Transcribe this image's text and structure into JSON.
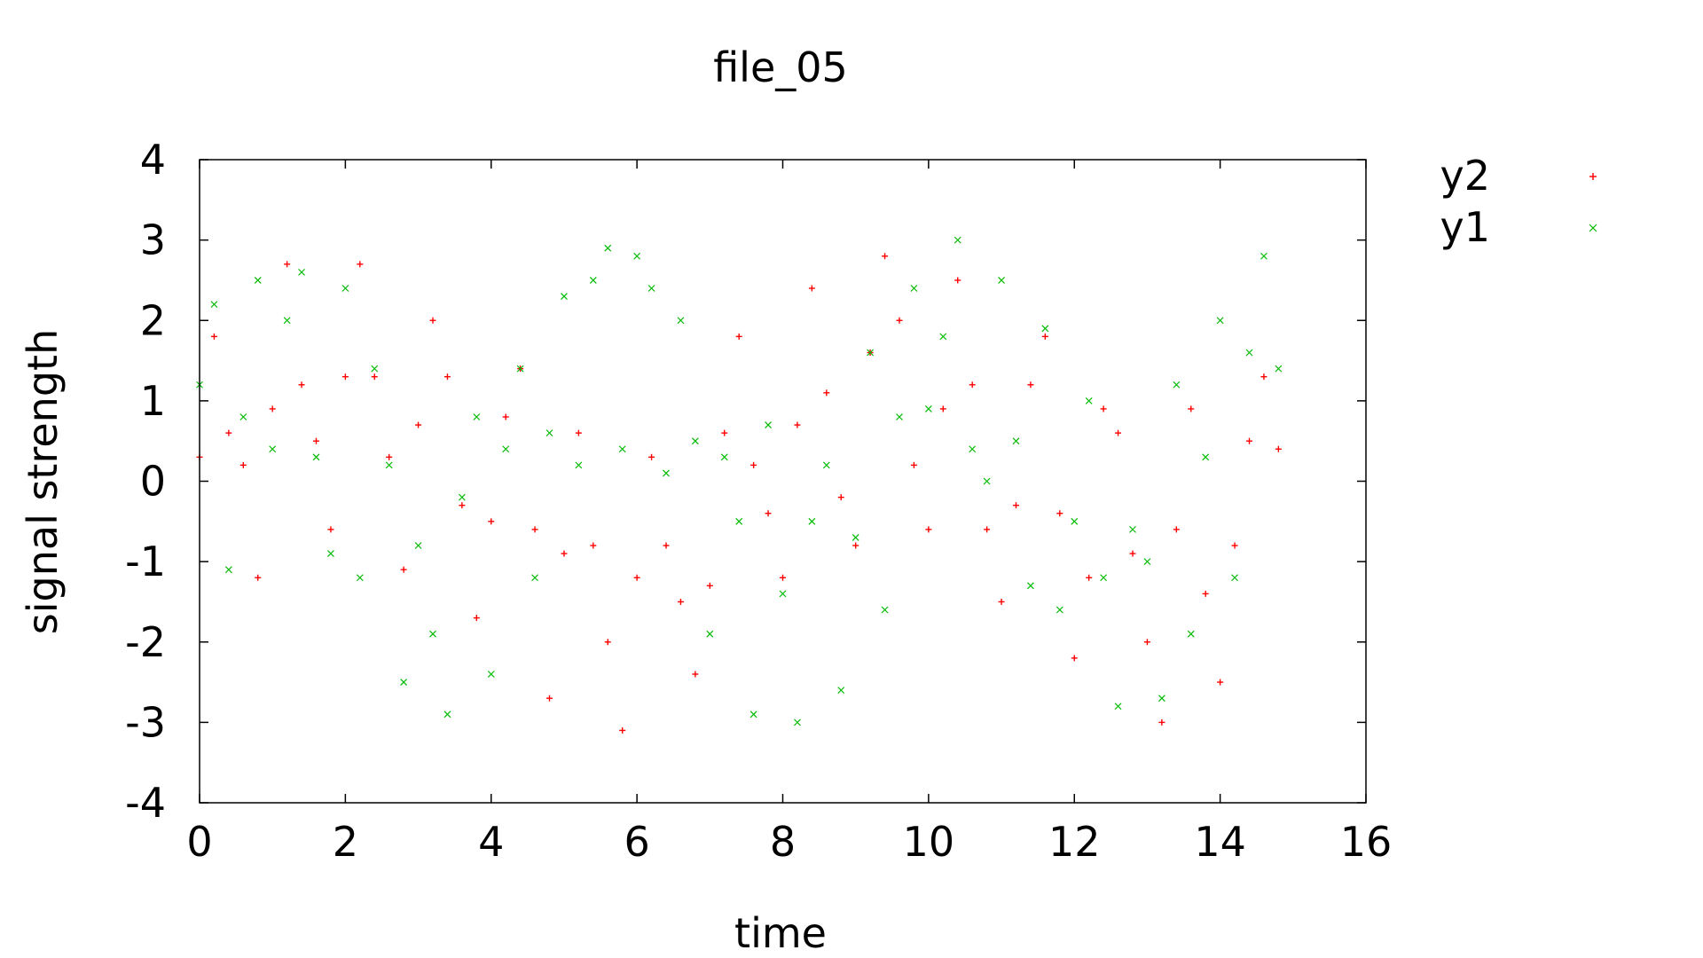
{
  "chart_data": {
    "type": "scatter",
    "title": "file_05",
    "xlabel": "time",
    "ylabel": "signal strength",
    "xlim": [
      0,
      16
    ],
    "ylim": [
      -4,
      4
    ],
    "xticks": [
      "0",
      "2",
      "4",
      "6",
      "8",
      "10",
      "12",
      "14",
      "16"
    ],
    "yticks": [
      "4",
      "3",
      "2",
      "1",
      "0",
      "-1",
      "-2",
      "-3",
      "-4"
    ],
    "grid": false,
    "legend": "right-outside",
    "series": [
      {
        "name": "y2",
        "marker": "plus",
        "color": "#ff0000",
        "x": [
          0.0,
          0.2,
          0.4,
          0.6,
          0.8,
          1.0,
          1.2,
          1.4,
          1.6,
          1.8,
          2.0,
          2.2,
          2.4,
          2.6,
          2.8,
          3.0,
          3.2,
          3.4,
          3.6,
          3.8,
          4.0,
          4.2,
          4.4,
          4.6,
          4.8,
          5.0,
          5.2,
          5.4,
          5.6,
          5.8,
          6.0,
          6.2,
          6.4,
          6.6,
          6.8,
          7.0,
          7.2,
          7.4,
          7.6,
          7.8,
          8.0,
          8.2,
          8.4,
          8.6,
          8.8,
          9.0,
          9.2,
          9.4,
          9.6,
          9.8,
          10.0,
          10.2,
          10.4,
          10.6,
          10.8,
          11.0,
          11.2,
          11.4,
          11.6,
          11.8,
          12.0,
          12.2,
          12.4,
          12.6,
          12.8,
          13.0,
          13.2,
          13.4,
          13.6,
          13.8,
          14.0,
          14.2,
          14.4,
          14.6,
          14.8
        ],
        "y": [
          0.3,
          1.8,
          0.6,
          0.2,
          -1.2,
          0.9,
          2.7,
          1.2,
          0.5,
          -0.6,
          1.3,
          2.7,
          1.3,
          0.3,
          -1.1,
          0.7,
          2.0,
          1.3,
          -0.3,
          -1.7,
          -0.5,
          0.8,
          1.4,
          -0.6,
          -2.7,
          -0.9,
          0.6,
          -0.8,
          -2.0,
          -3.1,
          -1.2,
          0.3,
          -0.8,
          -1.5,
          -2.4,
          -1.3,
          0.6,
          1.8,
          0.2,
          -0.4,
          -1.2,
          0.7,
          2.4,
          1.1,
          -0.2,
          -0.8,
          1.6,
          2.8,
          2.0,
          0.2,
          -0.6,
          0.9,
          2.5,
          1.2,
          -0.6,
          -1.5,
          -0.3,
          1.2,
          1.8,
          -0.4,
          -2.2,
          -1.2,
          0.9,
          0.6,
          -0.9,
          -2.0,
          -3.0,
          -0.6,
          0.9,
          -1.4,
          -2.5,
          -0.8,
          0.5,
          1.3,
          0.4
        ]
      },
      {
        "name": "y1",
        "marker": "cross",
        "color": "#00bb00",
        "x": [
          0.0,
          0.2,
          0.4,
          0.6,
          0.8,
          1.0,
          1.2,
          1.4,
          1.6,
          1.8,
          2.0,
          2.2,
          2.4,
          2.6,
          2.8,
          3.0,
          3.2,
          3.4,
          3.6,
          3.8,
          4.0,
          4.2,
          4.4,
          4.6,
          4.8,
          5.0,
          5.2,
          5.4,
          5.6,
          5.8,
          6.0,
          6.2,
          6.4,
          6.6,
          6.8,
          7.0,
          7.2,
          7.4,
          7.6,
          7.8,
          8.0,
          8.2,
          8.4,
          8.6,
          8.8,
          9.0,
          9.2,
          9.4,
          9.6,
          9.8,
          10.0,
          10.2,
          10.4,
          10.6,
          10.8,
          11.0,
          11.2,
          11.4,
          11.6,
          11.8,
          12.0,
          12.2,
          12.4,
          12.6,
          12.8,
          13.0,
          13.2,
          13.4,
          13.6,
          13.8,
          14.0,
          14.2,
          14.4,
          14.6,
          14.8
        ],
        "y": [
          1.2,
          2.2,
          -1.1,
          0.8,
          2.5,
          0.4,
          2.0,
          2.6,
          0.3,
          -0.9,
          2.4,
          -1.2,
          1.4,
          0.2,
          -2.5,
          -0.8,
          -1.9,
          -2.9,
          -0.2,
          0.8,
          -2.4,
          0.4,
          1.4,
          -1.2,
          0.6,
          2.3,
          0.2,
          2.5,
          2.9,
          0.4,
          2.8,
          2.4,
          0.1,
          2.0,
          0.5,
          -1.9,
          0.3,
          -0.5,
          -2.9,
          0.7,
          -1.4,
          -3.0,
          -0.5,
          0.2,
          -2.6,
          -0.7,
          1.6,
          -1.6,
          0.8,
          2.4,
          0.9,
          1.8,
          3.0,
          0.4,
          0.0,
          2.5,
          0.5,
          -1.3,
          1.9,
          -1.6,
          -0.5,
          1.0,
          -1.2,
          -2.8,
          -0.6,
          -1.0,
          -2.7,
          1.2,
          -1.9,
          0.3,
          2.0,
          -1.2,
          1.6,
          2.8,
          1.4
        ]
      }
    ]
  }
}
